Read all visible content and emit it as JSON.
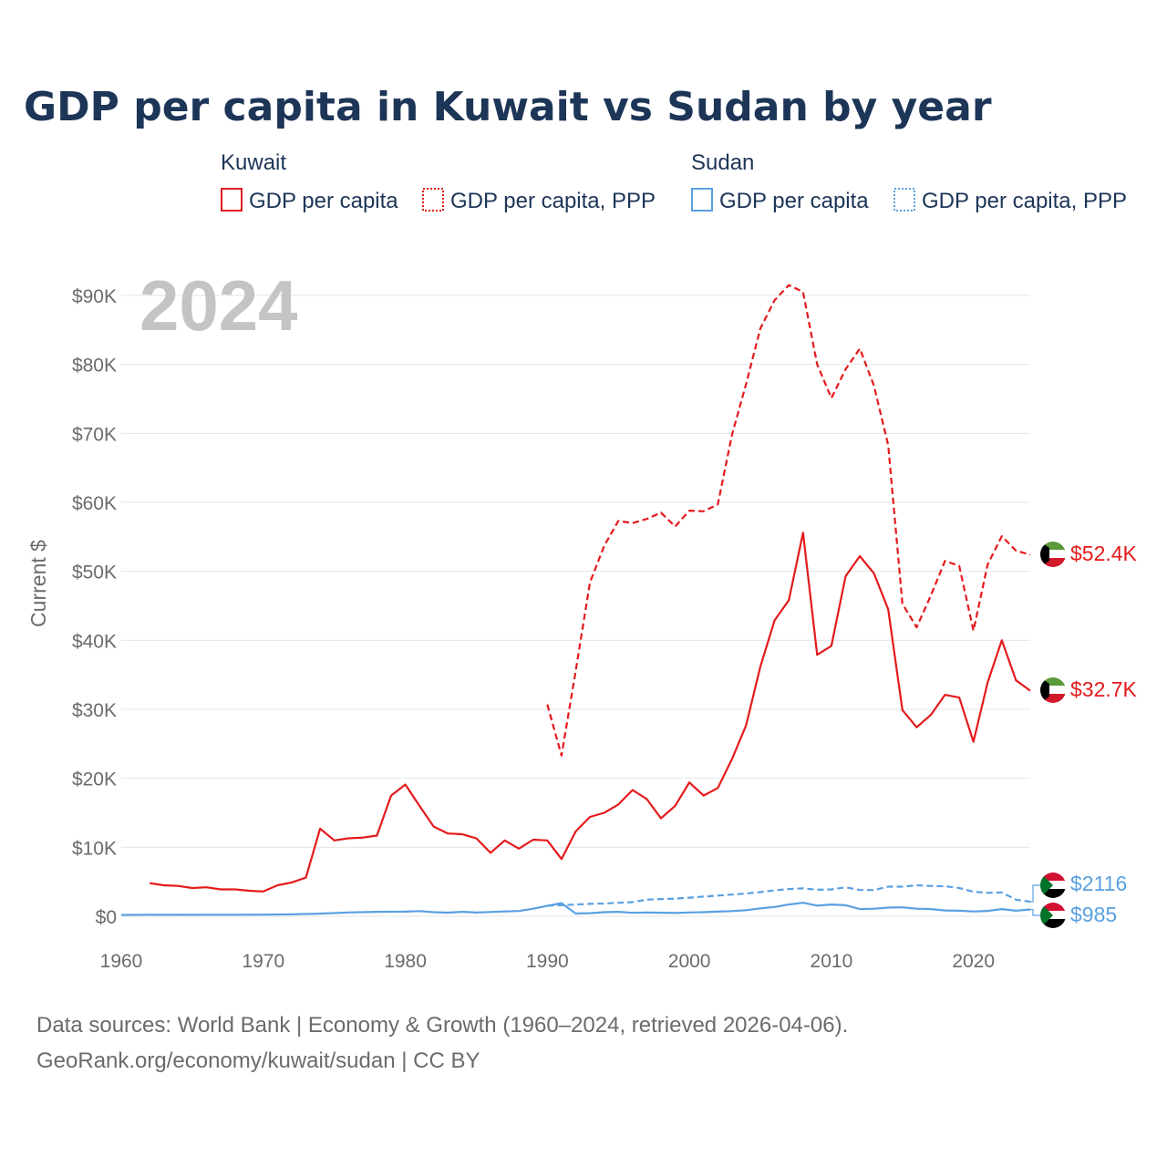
{
  "title": "GDP per capita in Kuwait vs Sudan by year",
  "year_label": "2024",
  "legend": {
    "groups": [
      {
        "country": "Kuwait",
        "items": [
          "GDP per capita",
          "GDP per capita, PPP"
        ]
      },
      {
        "country": "Sudan",
        "items": [
          "GDP per capita",
          "GDP per capita, PPP"
        ]
      }
    ]
  },
  "source_lines": [
    "Data sources: World Bank | Economy & Growth (1960–2024, retrieved 2026-04-06).",
    "GeoRank.org/economy/kuwait/sudan | CC BY"
  ],
  "colors": {
    "kuwait": "#e41a1c",
    "sudan": "#5aa0e0",
    "grid": "#e6e6e6",
    "title": "#1d3557"
  },
  "chart_data": {
    "type": "line",
    "title": "GDP per capita in Kuwait vs Sudan by year",
    "xlabel": "",
    "ylabel": "Current $",
    "xlim": [
      1960,
      2024
    ],
    "ylim": [
      0,
      90000
    ],
    "x_ticks": [
      1960,
      1970,
      1980,
      1990,
      2000,
      2010,
      2020
    ],
    "y_ticks": [
      {
        "value": 0,
        "label": "$0"
      },
      {
        "value": 10000,
        "label": "$10K"
      },
      {
        "value": 20000,
        "label": "$20K"
      },
      {
        "value": 30000,
        "label": "$30K"
      },
      {
        "value": 40000,
        "label": "$40K"
      },
      {
        "value": 50000,
        "label": "$50K"
      },
      {
        "value": 60000,
        "label": "$60K"
      },
      {
        "value": 70000,
        "label": "$70K"
      },
      {
        "value": 80000,
        "label": "$80K"
      },
      {
        "value": 90000,
        "label": "$90K"
      }
    ],
    "series": [
      {
        "name": "Kuwait GDP per capita",
        "country": "kuwait",
        "style": "solid",
        "end_label": "$32.7K",
        "x": [
          1962,
          1963,
          1964,
          1965,
          1966,
          1967,
          1968,
          1969,
          1970,
          1971,
          1972,
          1973,
          1974,
          1975,
          1976,
          1977,
          1978,
          1979,
          1980,
          1981,
          1982,
          1983,
          1984,
          1985,
          1986,
          1987,
          1988,
          1989,
          1990,
          1991,
          1992,
          1993,
          1994,
          1995,
          1996,
          1997,
          1998,
          1999,
          2000,
          2001,
          2002,
          2003,
          2004,
          2005,
          2006,
          2007,
          2008,
          2009,
          2010,
          2011,
          2012,
          2013,
          2014,
          2015,
          2016,
          2017,
          2018,
          2019,
          2020,
          2021,
          2022,
          2023,
          2024
        ],
        "values": [
          4800,
          4500,
          4400,
          4100,
          4200,
          3900,
          3900,
          3700,
          3600,
          4500,
          4900,
          5600,
          12700,
          11000,
          11300,
          11400,
          11700,
          17500,
          19100,
          16000,
          13000,
          12000,
          11900,
          11300,
          9200,
          11000,
          9800,
          11100,
          11000,
          8300,
          12300,
          14400,
          15000,
          16200,
          18300,
          17000,
          14200,
          16000,
          19400,
          17500,
          18600,
          22800,
          27700,
          36200,
          42900,
          45800,
          55600,
          37900,
          39200,
          49300,
          52200,
          49700,
          44500,
          29900,
          27400,
          29200,
          32100,
          31700,
          25300,
          33900,
          40000,
          34200,
          32700
        ]
      },
      {
        "name": "Kuwait GDP per capita, PPP",
        "country": "kuwait",
        "style": "dashed",
        "end_label": "$52.4K",
        "x": [
          1990,
          1991,
          1992,
          1993,
          1994,
          1995,
          1996,
          1997,
          1998,
          1999,
          2000,
          2001,
          2002,
          2003,
          2004,
          2005,
          2006,
          2007,
          2008,
          2009,
          2010,
          2011,
          2012,
          2013,
          2014,
          2015,
          2016,
          2017,
          2018,
          2019,
          2020,
          2021,
          2022,
          2023,
          2024
        ],
        "values": [
          30700,
          23300,
          35600,
          48400,
          53700,
          57300,
          57000,
          57600,
          58500,
          56500,
          58800,
          58700,
          59700,
          69800,
          77200,
          85200,
          89300,
          91500,
          90500,
          80000,
          75100,
          79300,
          82300,
          76900,
          68300,
          45300,
          41900,
          46500,
          51500,
          50800,
          41400,
          51000,
          55100,
          53000,
          52400
        ]
      },
      {
        "name": "Sudan GDP per capita",
        "country": "sudan",
        "style": "solid",
        "end_label": "$985",
        "x": [
          1960,
          1962,
          1964,
          1966,
          1968,
          1970,
          1972,
          1974,
          1976,
          1978,
          1980,
          1981,
          1982,
          1983,
          1984,
          1985,
          1986,
          1987,
          1988,
          1989,
          1990,
          1991,
          1992,
          1993,
          1994,
          1995,
          1996,
          1997,
          1998,
          1999,
          2000,
          2001,
          2002,
          2003,
          2004,
          2005,
          2006,
          2007,
          2008,
          2009,
          2010,
          2011,
          2012,
          2013,
          2014,
          2015,
          2016,
          2017,
          2018,
          2019,
          2020,
          2021,
          2022,
          2023,
          2024
        ],
        "values": [
          200,
          220,
          210,
          220,
          230,
          240,
          280,
          380,
          550,
          650,
          680,
          750,
          600,
          530,
          650,
          540,
          620,
          700,
          770,
          1100,
          1500,
          1900,
          400,
          450,
          600,
          650,
          500,
          550,
          520,
          480,
          550,
          600,
          680,
          750,
          880,
          1150,
          1350,
          1700,
          1950,
          1550,
          1700,
          1600,
          1050,
          1100,
          1250,
          1300,
          1100,
          1050,
          850,
          800,
          700,
          780,
          1050,
          800,
          985
        ]
      },
      {
        "name": "Sudan GDP per capita, PPP",
        "country": "sudan",
        "style": "dashed",
        "end_label": "$2116",
        "x": [
          1990,
          1991,
          1992,
          1993,
          1994,
          1995,
          1996,
          1997,
          1998,
          1999,
          2000,
          2001,
          2002,
          2003,
          2004,
          2005,
          2006,
          2007,
          2008,
          2009,
          2010,
          2011,
          2012,
          2013,
          2014,
          2015,
          2016,
          2017,
          2018,
          2019,
          2020,
          2021,
          2022,
          2023,
          2024
        ],
        "values": [
          1550,
          1600,
          1700,
          1800,
          1850,
          1950,
          2050,
          2400,
          2500,
          2550,
          2700,
          2850,
          3000,
          3150,
          3300,
          3500,
          3750,
          3950,
          4050,
          3850,
          3900,
          4200,
          3800,
          3800,
          4300,
          4300,
          4500,
          4400,
          4350,
          4100,
          3550,
          3400,
          3450,
          2400,
          2116
        ]
      }
    ]
  }
}
